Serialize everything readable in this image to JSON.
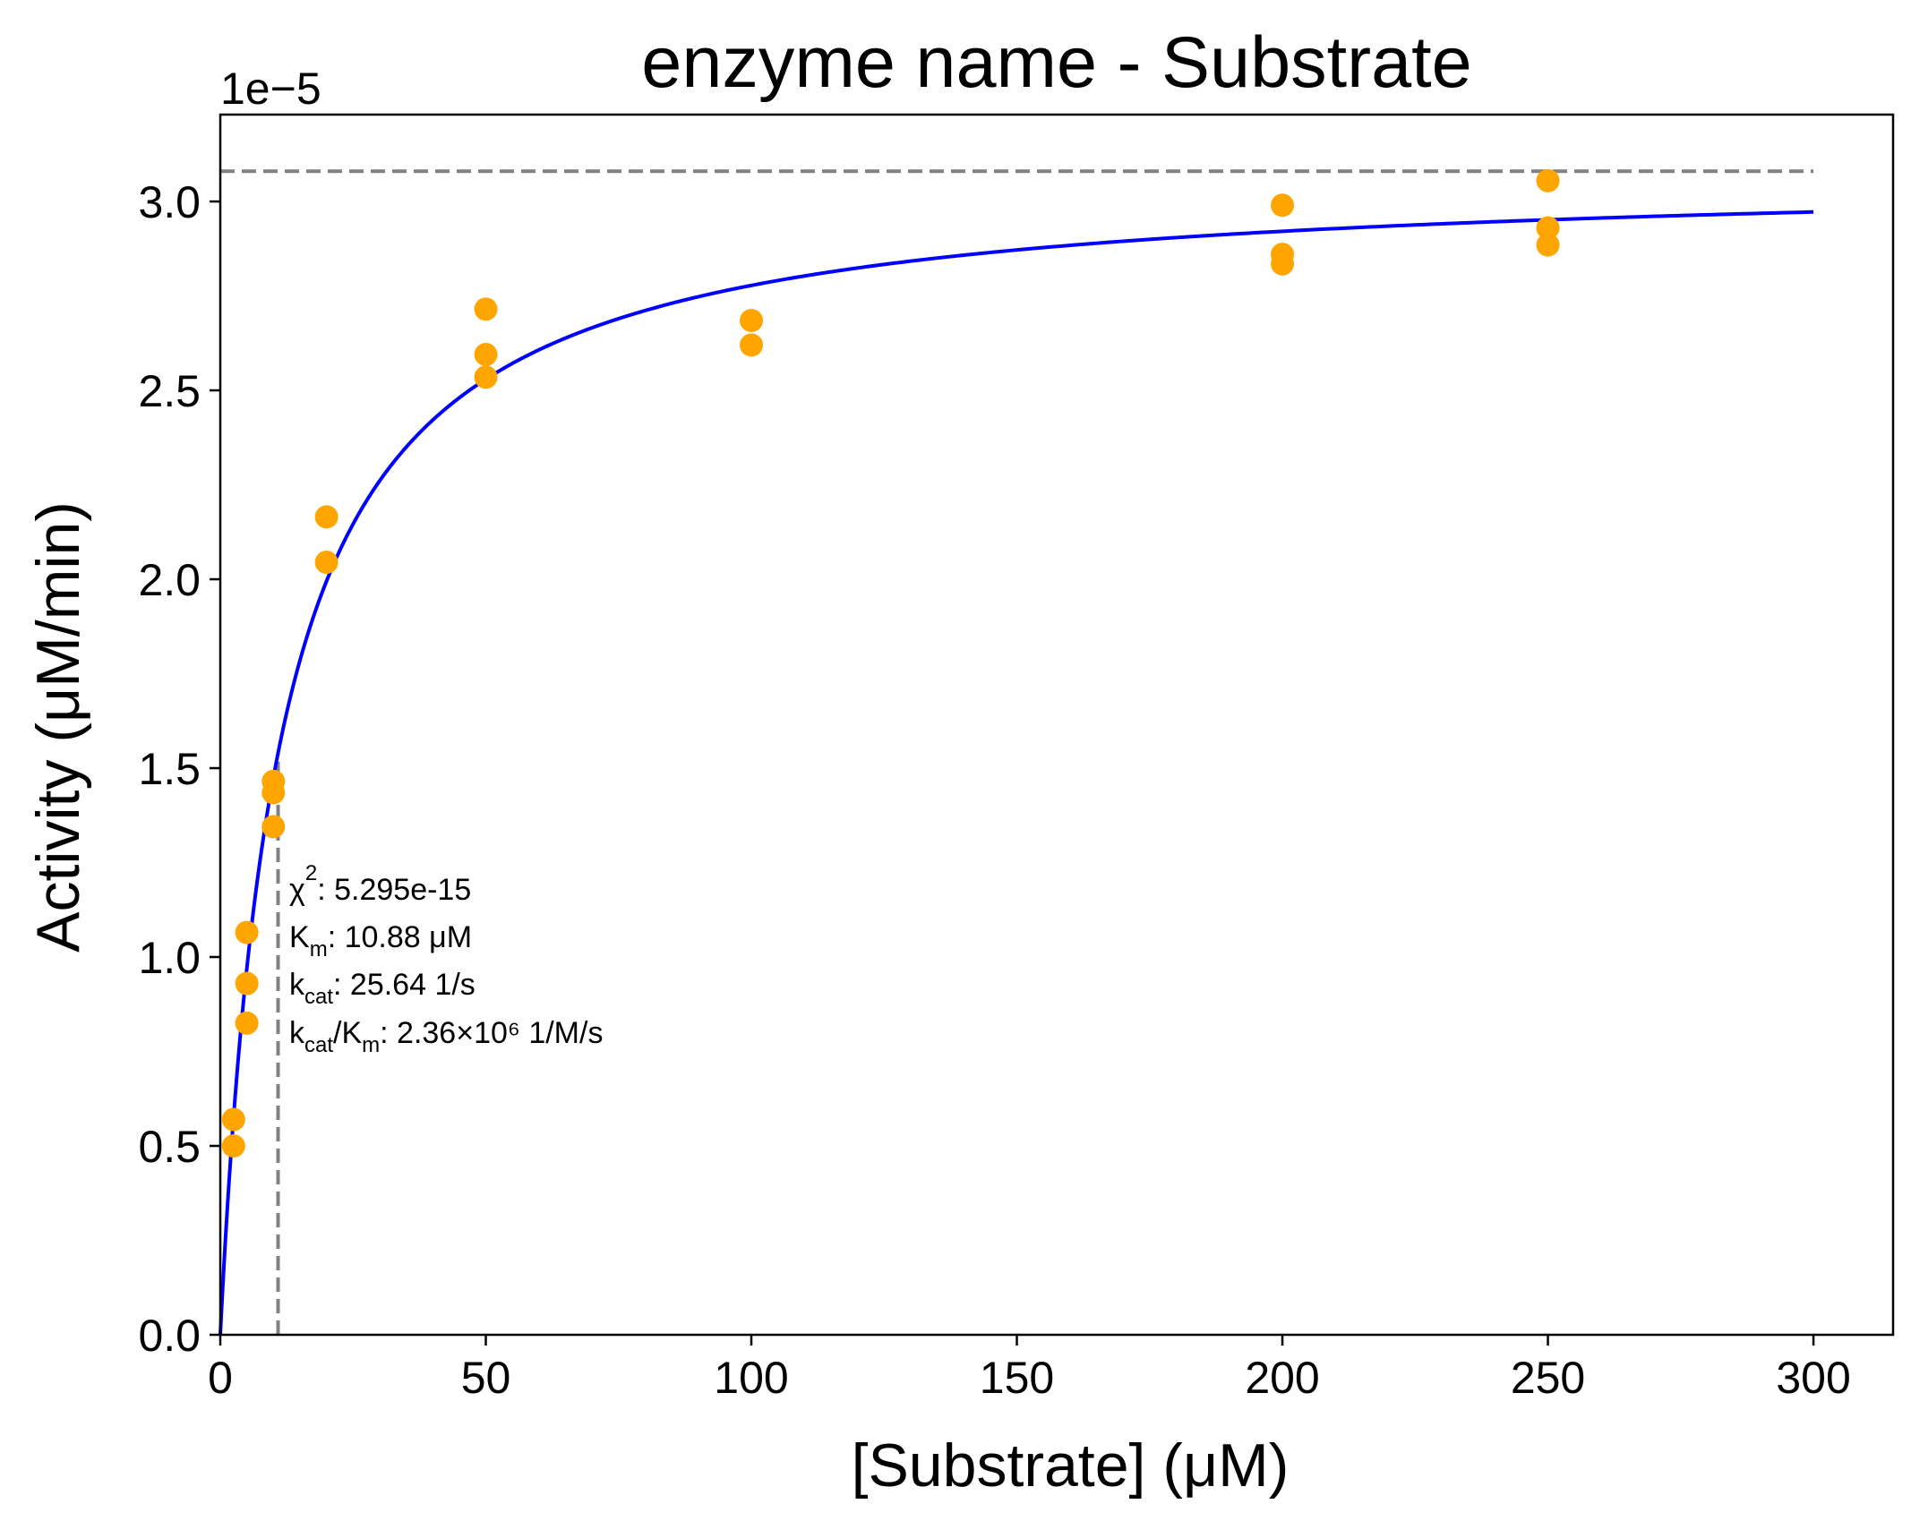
{
  "chart_data": {
    "type": "scatter",
    "title": "enzyme name - Substrate",
    "xlabel": "[Substrate] (μM)",
    "ylabel": "Activity (μM/min)",
    "y_offset_label": "1e−5",
    "xlim": [
      0,
      315
    ],
    "ylim": [
      0,
      3.23
    ],
    "x_scale": 1,
    "y_scale": 1e-05,
    "xticks": [
      0,
      50,
      100,
      150,
      200,
      250,
      300
    ],
    "xtick_labels": [
      "0",
      "50",
      "100",
      "150",
      "200",
      "250",
      "300"
    ],
    "yticks": [
      0,
      0.5,
      1.0,
      1.5,
      2.0,
      2.5,
      3.0
    ],
    "ytick_labels": [
      "0.0",
      "0.5",
      "1.0",
      "1.5",
      "2.0",
      "2.5",
      "3.0"
    ],
    "grid": false,
    "colors": {
      "points": "#ffa500",
      "fit": "#0000ff",
      "reference": "#808080",
      "axes": "#000000"
    },
    "series": [
      {
        "kind": "points",
        "x": [
          2.5,
          2.5,
          5,
          5,
          5,
          10,
          10,
          10,
          20,
          20,
          50,
          50,
          50,
          100,
          100,
          200,
          200,
          200,
          250,
          250,
          250
        ],
        "y": [
          0.57,
          0.5,
          1.065,
          0.93,
          0.825,
          1.465,
          1.435,
          1.345,
          2.165,
          2.045,
          2.715,
          2.595,
          2.535,
          2.685,
          2.62,
          2.99,
          2.86,
          2.835,
          3.055,
          2.93,
          2.885
        ]
      },
      {
        "kind": "fit",
        "model": "michaelis-menten",
        "Vmax": 3.08,
        "Km": 10.88,
        "x_range": [
          0,
          300
        ]
      }
    ],
    "reference_lines": [
      {
        "orientation": "horizontal",
        "y": 3.08,
        "x_from": 0,
        "x_to": 300,
        "style": "dashed"
      },
      {
        "orientation": "vertical",
        "x": 10.88,
        "y_from": 0,
        "y_to": 1.54,
        "style": "dashed"
      }
    ],
    "annotation": {
      "chi2": {
        "symbol": "χ",
        "sup": "2",
        "text": ": 5.295e-15"
      },
      "km": {
        "symbol": "K",
        "sub": "m",
        "text": ": 10.88 μM"
      },
      "kcat": {
        "symbol": "k",
        "sub": "cat",
        "text": ": 25.64 1/s"
      },
      "kcat_km": {
        "symbol1": "k",
        "sub1": "cat",
        "mid": "/K",
        "sub2": "m",
        "text": ": 2.36×10⁶ 1/M/s"
      }
    }
  }
}
